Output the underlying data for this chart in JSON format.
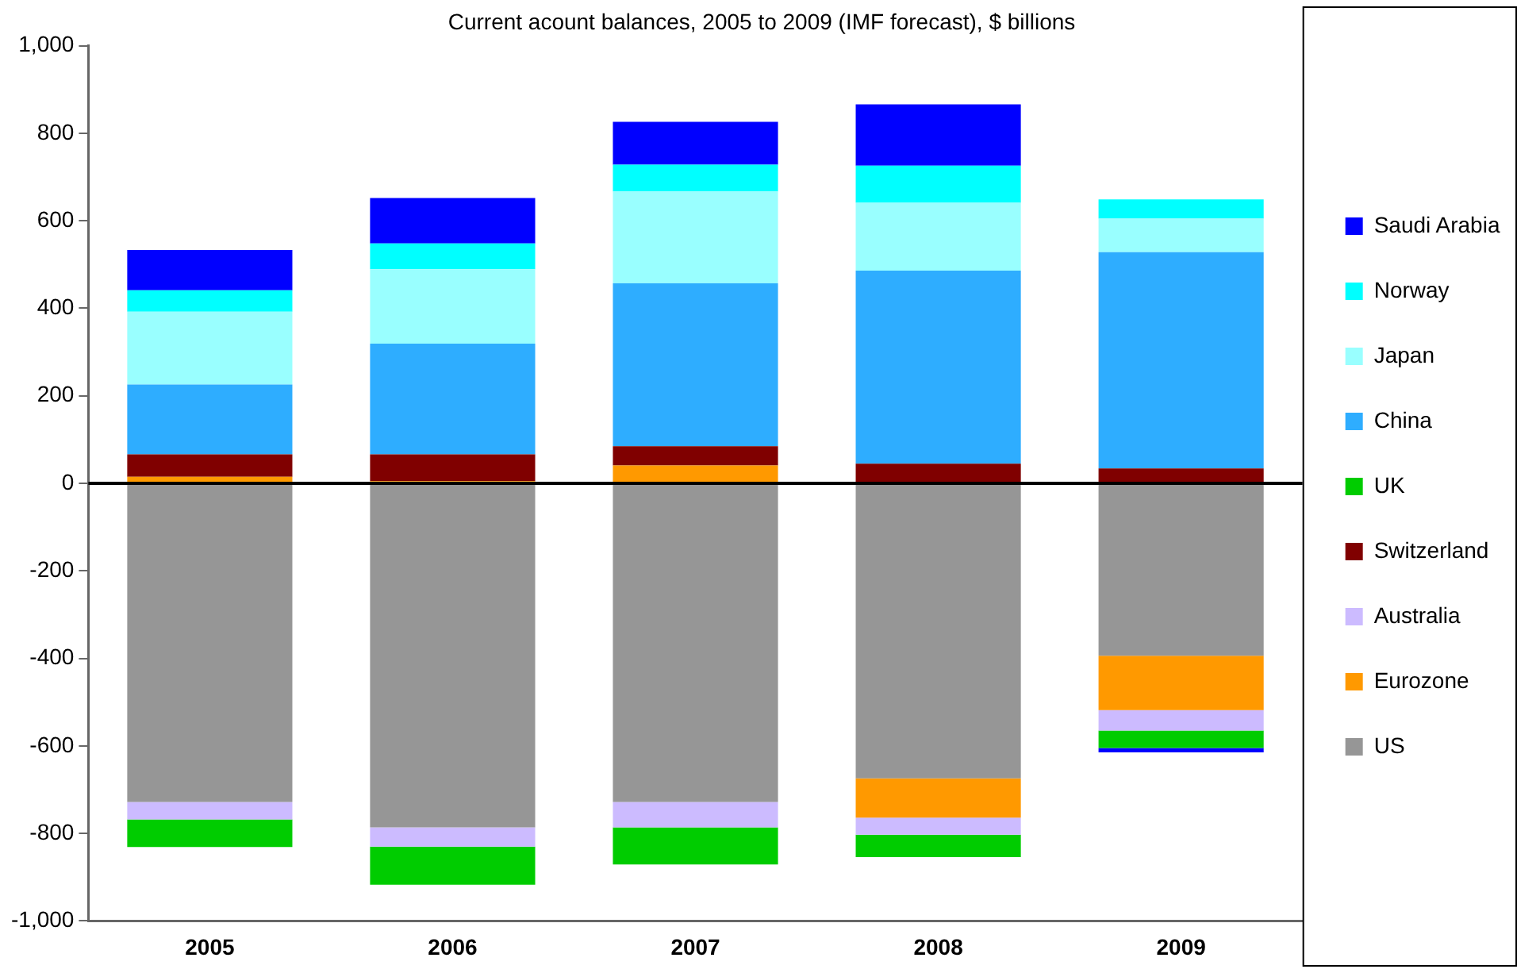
{
  "chart_data": {
    "type": "bar",
    "title": "Current acount balances, 2005 to 2009 (IMF forecast), $ billions",
    "categories": [
      "2005",
      "2006",
      "2007",
      "2008",
      "2009"
    ],
    "stacked": true,
    "legend": "right",
    "grid": false,
    "ylim": [
      -1000,
      1000
    ],
    "yticks": [
      {
        "value": -1000,
        "label": "-1,000"
      },
      -800,
      -600,
      -400,
      -200,
      0,
      200,
      400,
      600,
      800,
      {
        "value": 1000,
        "label": "1,000"
      }
    ],
    "ref_lines": [
      {
        "axis": "y",
        "value": 0,
        "color": "#000000"
      }
    ],
    "series": [
      {
        "name": "US",
        "color": "#969696",
        "values": [
          -728,
          -786,
          -728,
          -674,
          -394
        ]
      },
      {
        "name": "Eurozone",
        "color": "#ff9900",
        "values": [
          15,
          5,
          41,
          -90,
          -124
        ]
      },
      {
        "name": "Australia",
        "color": "#ccbbff",
        "values": [
          -40,
          -44,
          -58,
          -39,
          -47
        ]
      },
      {
        "name": "Switzerland",
        "color": "#800000",
        "values": [
          51,
          61,
          44,
          45,
          34
        ]
      },
      {
        "name": "UK",
        "color": "#00cc00",
        "values": [
          -63,
          -87,
          -85,
          -51,
          -40
        ]
      },
      {
        "name": "China",
        "color": "#2eadff",
        "values": [
          160,
          253,
          372,
          441,
          494
        ]
      },
      {
        "name": "Japan",
        "color": "#99ffff",
        "values": [
          166,
          170,
          210,
          155,
          77
        ]
      },
      {
        "name": "Norway",
        "color": "#00ffff",
        "values": [
          49,
          59,
          61,
          85,
          44
        ]
      },
      {
        "name": "Saudi Arabia",
        "color": "#0000ff",
        "values": [
          92,
          104,
          98,
          140,
          -10
        ]
      }
    ]
  }
}
